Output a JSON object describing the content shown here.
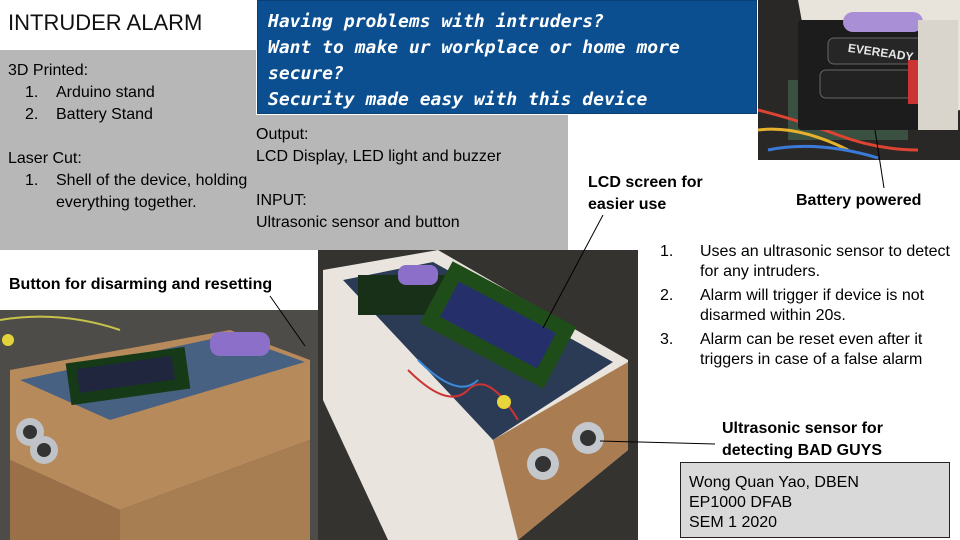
{
  "title": "INTRUDER ALARM",
  "banner": {
    "lines": [
      "Having problems with intruders?",
      "Want to make ur workplace or home more",
      "secure?",
      "Security made easy with this device"
    ]
  },
  "printed": {
    "heading": "3D Printed:",
    "items": [
      {
        "num": "1.",
        "text": "Arduino stand"
      },
      {
        "num": "2.",
        "text": "Battery Stand"
      }
    ]
  },
  "laser": {
    "heading": "Laser Cut:",
    "items": [
      {
        "num": "1.",
        "text": "Shell of the device, holding everything together."
      }
    ]
  },
  "io": {
    "output_heading": "Output:",
    "output_text": "LCD Display, LED light and buzzer",
    "input_heading": "INPUT:",
    "input_text": "Ultrasonic sensor and button"
  },
  "callouts": {
    "lcd": "LCD screen for easier use",
    "battery": "Battery powered",
    "button": "Button for disarming and resetting",
    "ultrasonic": "Ultrasonic sensor for detecting BAD GUYS"
  },
  "features": [
    {
      "num": "1.",
      "text": "Uses an ultrasonic sensor to detect for any intruders."
    },
    {
      "num": "2.",
      "text": "Alarm will trigger if device is not disarmed within 20s."
    },
    {
      "num": "3.",
      "text": "Alarm can be reset even after it triggers in case of a false alarm"
    }
  ],
  "credits": {
    "name": "Wong Quan Yao, DBEN",
    "course": "EP1000 DFAB",
    "semester": "SEM 1 2020"
  },
  "battery_label": "EVEREADY"
}
